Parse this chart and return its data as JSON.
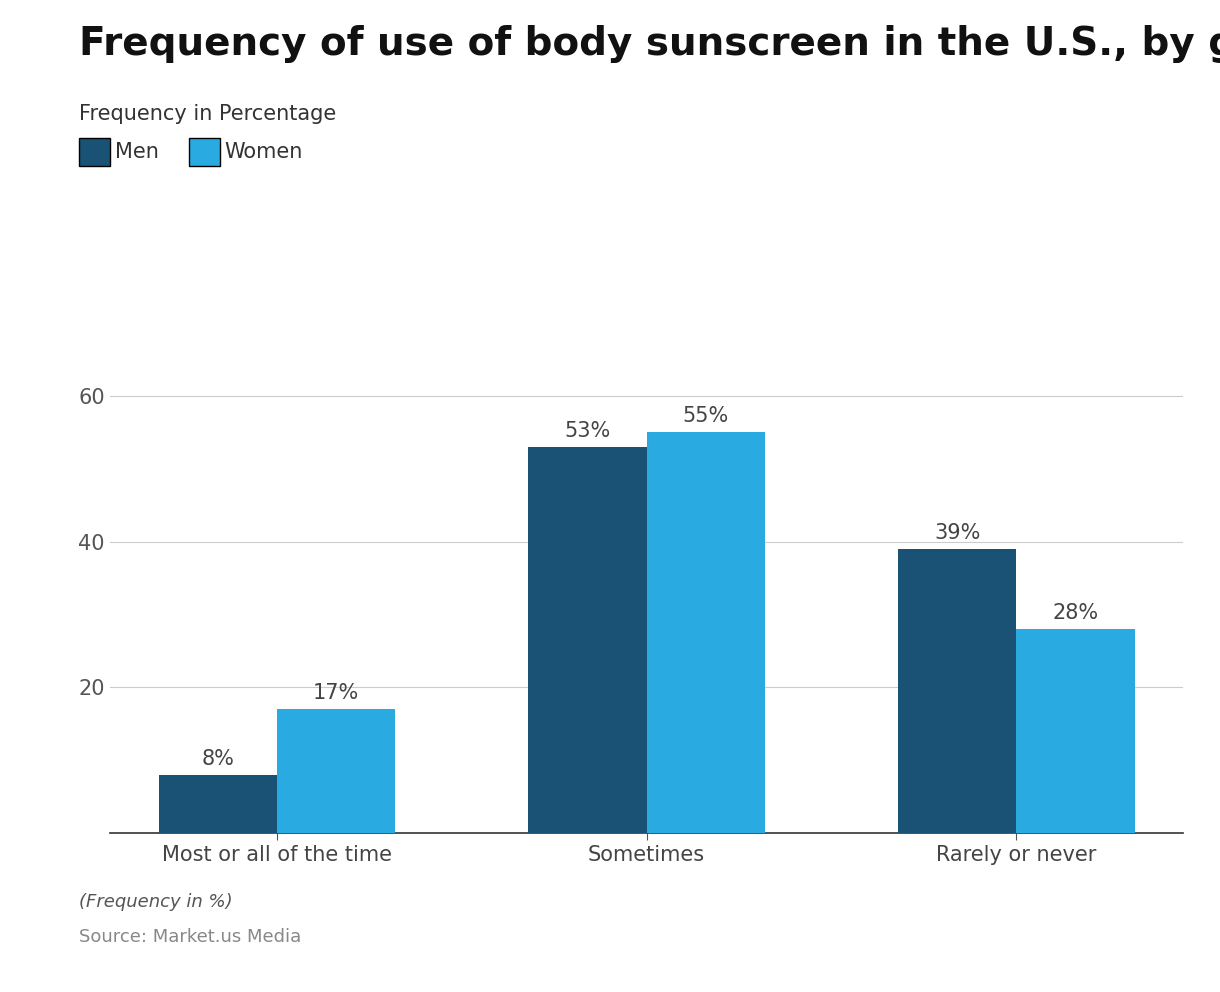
{
  "title": "Frequency of use of body sunscreen in the U.S., by gender",
  "subtitle": "Frequency in Percentage",
  "categories": [
    "Most or all of the time",
    "Sometimes",
    "Rarely or never"
  ],
  "men_values": [
    8,
    53,
    39
  ],
  "women_values": [
    17,
    55,
    28
  ],
  "men_color": "#1a5276",
  "women_color": "#29abe2",
  "bar_width": 0.32,
  "ylim": [
    0,
    68
  ],
  "yticks": [
    20,
    40,
    60
  ],
  "footnote": "(Frequency in %)",
  "source": "Source: Market.us Media",
  "background_color": "#ffffff",
  "tick_color": "#888888",
  "grid_color": "#cccccc",
  "title_fontsize": 28,
  "subtitle_fontsize": 15,
  "label_fontsize": 15,
  "bar_label_fontsize": 15,
  "legend_fontsize": 15,
  "footnote_fontsize": 13,
  "source_fontsize": 13
}
